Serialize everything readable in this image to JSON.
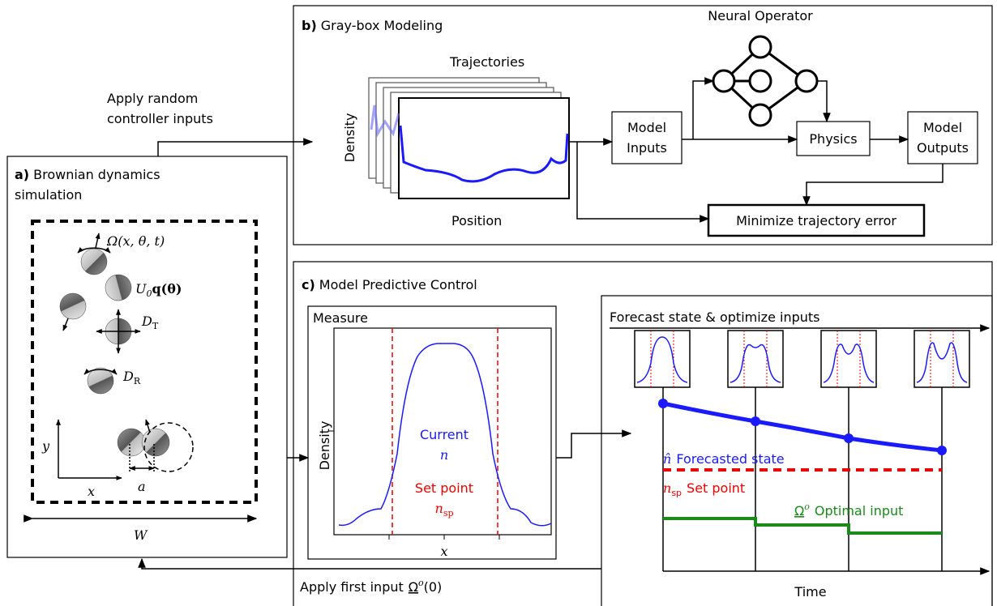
{
  "apply_random": [
    "Apply random",
    "controller inputs"
  ],
  "apply_first": {
    "text": "Apply first input",
    "symbol": "Ω",
    "sup": "o",
    "arg": "(0)"
  },
  "panel_a": {
    "label": "a)",
    "title": [
      "Brownian dynamics",
      "simulation"
    ],
    "rotation": "Ω(x, θ, t)",
    "swim": {
      "base": "U",
      "sub": "0",
      "rest": "q(θ)"
    },
    "translational": {
      "base": "D",
      "sub": "T"
    },
    "rotational": {
      "base": "D",
      "sub": "R"
    },
    "y_axis": "y",
    "x_axis": "x",
    "spacing": "a",
    "width": "W"
  },
  "panel_b": {
    "label": "b)",
    "title": "Gray-box Modeling",
    "trajectories": "Trajectories",
    "y_label": "Density",
    "x_label": "Position",
    "model_inputs": [
      "Model",
      "Inputs"
    ],
    "neural_operator": "Neural Operator",
    "physics": "Physics",
    "model_outputs": [
      "Model",
      "Outputs"
    ],
    "minimize": "Minimize trajectory error"
  },
  "panel_c": {
    "label": "c)",
    "title": "Model Predictive Control",
    "measure": {
      "title": "Measure",
      "y_label": "Density",
      "x_label": "x",
      "current": "Current",
      "current_symbol": "n",
      "set_point": "Set point",
      "set_point_symbol": {
        "base": "n",
        "sub": "sp"
      }
    },
    "forecast": {
      "title": "Forecast state & optimize inputs",
      "forecasted": {
        "symbol": "n̂",
        "text": "Forecasted state"
      },
      "set_point": {
        "symbol": {
          "base": "n",
          "sub": "sp"
        },
        "text": "Set point"
      },
      "optimal": {
        "symbol": "Ω",
        "sup": "o",
        "text": "Optimal input"
      },
      "x_label": "Time"
    }
  }
}
